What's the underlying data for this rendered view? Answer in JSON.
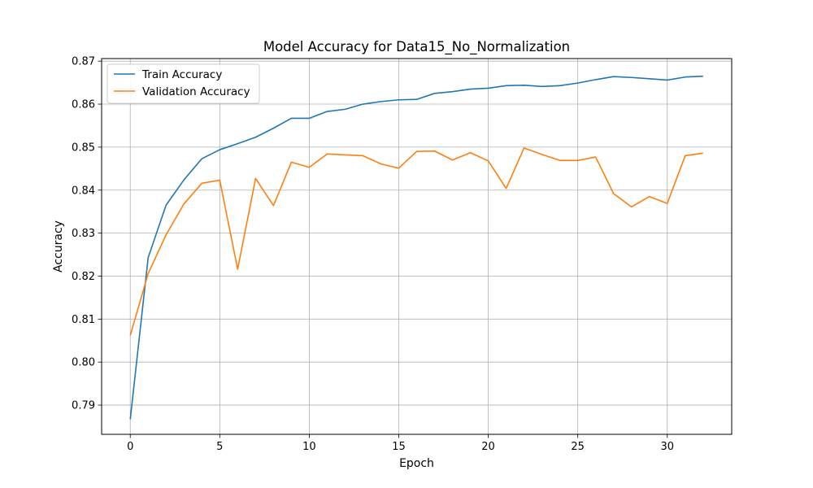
{
  "chart_data": {
    "type": "line",
    "title": "Model Accuracy for Data15_No_Normalization",
    "xlabel": "Epoch",
    "ylabel": "Accuracy",
    "xlim": [
      -1.6,
      33.6
    ],
    "ylim": [
      0.7832,
      0.8706
    ],
    "xticks": [
      0,
      5,
      10,
      15,
      20,
      25,
      30
    ],
    "yticks": [
      0.79,
      0.8,
      0.81,
      0.82,
      0.83,
      0.84,
      0.85,
      0.86,
      0.87
    ],
    "ytick_labels": [
      "0.79",
      "0.80",
      "0.81",
      "0.82",
      "0.83",
      "0.84",
      "0.85",
      "0.86",
      "0.87"
    ],
    "grid": true,
    "legend_position": "upper-left",
    "x": [
      0,
      1,
      2,
      3,
      4,
      5,
      6,
      7,
      8,
      9,
      10,
      11,
      12,
      13,
      14,
      15,
      16,
      17,
      18,
      19,
      20,
      21,
      22,
      23,
      24,
      25,
      26,
      27,
      28,
      29,
      30,
      31,
      32
    ],
    "series": [
      {
        "name": "Train Accuracy",
        "color": "#1f77b4",
        "values": [
          0.7867,
          0.8243,
          0.8365,
          0.8424,
          0.8473,
          0.8494,
          0.8508,
          0.8523,
          0.8544,
          0.8567,
          0.8567,
          0.8583,
          0.8588,
          0.86,
          0.8606,
          0.861,
          0.8611,
          0.8625,
          0.8629,
          0.8635,
          0.8637,
          0.8643,
          0.8644,
          0.8641,
          0.8643,
          0.8649,
          0.8657,
          0.8664,
          0.8662,
          0.8659,
          0.8656,
          0.8663,
          0.8665
        ]
      },
      {
        "name": "Validation Accuracy",
        "color": "#ff7f0e",
        "values": [
          0.8062,
          0.8206,
          0.8296,
          0.8368,
          0.8416,
          0.8423,
          0.8216,
          0.8427,
          0.8364,
          0.8465,
          0.8453,
          0.8484,
          0.8482,
          0.848,
          0.8461,
          0.8451,
          0.849,
          0.8491,
          0.847,
          0.8487,
          0.8468,
          0.8404,
          0.8498,
          0.8483,
          0.8469,
          0.8469,
          0.8477,
          0.8392,
          0.8361,
          0.8385,
          0.8369,
          0.848,
          0.8486
        ]
      }
    ]
  }
}
